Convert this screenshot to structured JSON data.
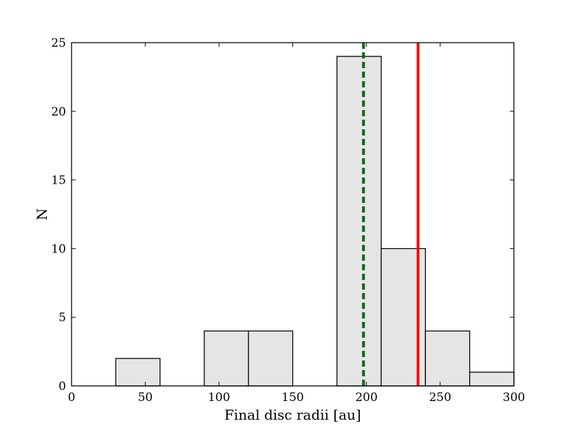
{
  "chart_data": {
    "type": "bar",
    "subtype": "histogram",
    "title": "",
    "xlabel": "Final disc radii [au]",
    "ylabel": "N",
    "xlim": [
      0,
      300
    ],
    "ylim": [
      0,
      25
    ],
    "xticks": [
      0,
      50,
      100,
      150,
      200,
      250,
      300
    ],
    "yticks": [
      0,
      5,
      10,
      15,
      20,
      25
    ],
    "grid": false,
    "legend": "none",
    "bins": [
      {
        "x0": 30,
        "x1": 60,
        "count": 2
      },
      {
        "x0": 90,
        "x1": 120,
        "count": 4
      },
      {
        "x0": 120,
        "x1": 150,
        "count": 4
      },
      {
        "x0": 180,
        "x1": 210,
        "count": 24
      },
      {
        "x0": 210,
        "x1": 240,
        "count": 10
      },
      {
        "x0": 240,
        "x1": 270,
        "count": 4
      },
      {
        "x0": 270,
        "x1": 300,
        "count": 1
      }
    ],
    "vlines": [
      {
        "x": 198,
        "style": "dashed",
        "color": "#006400"
      },
      {
        "x": 235,
        "style": "solid",
        "color": "#ff0000"
      }
    ],
    "colors": {
      "bar_fill": "#e5e5e5",
      "bar_edge": "#000000"
    }
  }
}
